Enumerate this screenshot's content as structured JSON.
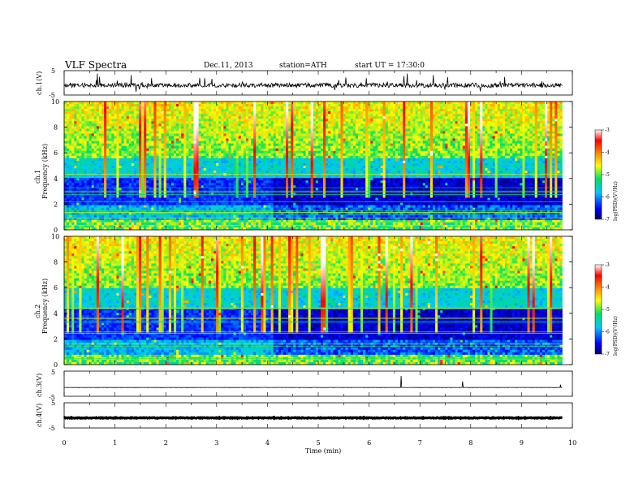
{
  "header": {
    "title": "VLF  Spectra",
    "date": "Dec.11, 2013",
    "station": "station=ATH",
    "start": "start  UT  =   17:30:0"
  },
  "colorbar_labels": [
    "-3",
    "-4",
    "-5",
    "-6",
    "-7"
  ],
  "colorbar_title": "log(PSD)(V²/Hz)",
  "chart_data": [
    {
      "type": "line",
      "panel": "ch1",
      "ylabel": "ch.1(V)",
      "ylim": [
        -5,
        5
      ],
      "yticks": [
        "5",
        "-5"
      ],
      "x_range_min": [
        0,
        9.8
      ],
      "baseline": -1.0
    },
    {
      "type": "heatmap",
      "panel": "ch1-spectrogram",
      "ylabel": [
        "ch.1",
        "Frequency  (kHz)"
      ],
      "ylim": [
        0,
        10
      ],
      "yticks": [
        "0",
        "2",
        "4",
        "6",
        "8",
        "10"
      ],
      "zlim": [
        -7,
        -3
      ],
      "transition_time_min": 4.1,
      "quiet_band_khz": [
        0,
        4
      ]
    },
    {
      "type": "heatmap",
      "panel": "ch2-spectrogram",
      "ylabel": [
        "ch.2",
        "Frequency  (kHz)"
      ],
      "ylim": [
        0,
        10
      ],
      "yticks": [
        "0",
        "2",
        "4",
        "6",
        "8",
        "10"
      ],
      "zlim": [
        -7,
        -3
      ],
      "transition_time_min": 4.1,
      "quiet_band_khz": [
        0,
        4.5
      ]
    },
    {
      "type": "line",
      "panel": "ch3",
      "ylabel": "ch.3(V)",
      "ylim": [
        -5,
        5
      ],
      "yticks": [
        "5",
        "-5"
      ],
      "x_range_min": [
        0,
        9.8
      ],
      "baseline": -1.5
    },
    {
      "type": "line",
      "panel": "ch4",
      "ylabel": "ch.4(V)",
      "ylim": [
        -5,
        5
      ],
      "yticks": [
        "5",
        "-5"
      ],
      "x_range_min": [
        0,
        9.8
      ],
      "baseline": -1.0
    }
  ],
  "x_axis": {
    "label": "Time  (min)",
    "ticks": [
      "0",
      "1",
      "2",
      "3",
      "4",
      "5",
      "6",
      "7",
      "8",
      "9",
      "10"
    ],
    "xlim": [
      0,
      10
    ]
  }
}
